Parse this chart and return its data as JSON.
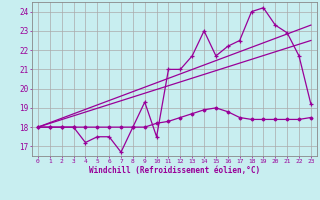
{
  "xlabel": "Windchill (Refroidissement éolien,°C)",
  "background_color": "#c8eef0",
  "grid_color": "#aaaaaa",
  "line_color": "#990099",
  "xlim": [
    -0.5,
    23.5
  ],
  "ylim": [
    16.5,
    24.5
  ],
  "yticks": [
    17,
    18,
    19,
    20,
    21,
    22,
    23,
    24
  ],
  "xticks": [
    0,
    1,
    2,
    3,
    4,
    5,
    6,
    7,
    8,
    9,
    10,
    11,
    12,
    13,
    14,
    15,
    16,
    17,
    18,
    19,
    20,
    21,
    22,
    23
  ],
  "series1_x": [
    0,
    1,
    2,
    3,
    4,
    5,
    6,
    7,
    8,
    9,
    10,
    11,
    12,
    13,
    14,
    15,
    16,
    17,
    18,
    19,
    20,
    21,
    22,
    23
  ],
  "series1_y": [
    18.0,
    18.0,
    18.0,
    18.0,
    17.2,
    17.5,
    17.5,
    16.7,
    18.0,
    19.3,
    17.5,
    21.0,
    21.0,
    21.7,
    23.0,
    21.7,
    22.2,
    22.5,
    24.0,
    24.2,
    23.3,
    22.9,
    21.7,
    19.2
  ],
  "series2_x": [
    0,
    1,
    2,
    3,
    4,
    5,
    6,
    7,
    8,
    9,
    10,
    11,
    12,
    13,
    14,
    15,
    16,
    17,
    18,
    19,
    20,
    21,
    22,
    23
  ],
  "series2_y": [
    18.0,
    18.0,
    18.0,
    18.0,
    18.0,
    18.0,
    18.0,
    18.0,
    18.0,
    18.0,
    18.2,
    18.3,
    18.5,
    18.7,
    18.9,
    19.0,
    18.8,
    18.5,
    18.4,
    18.4,
    18.4,
    18.4,
    18.4,
    18.5
  ],
  "line3": [
    [
      0,
      18.0
    ],
    [
      23,
      23.3
    ]
  ],
  "line4": [
    [
      0,
      18.0
    ],
    [
      23,
      22.5
    ]
  ]
}
